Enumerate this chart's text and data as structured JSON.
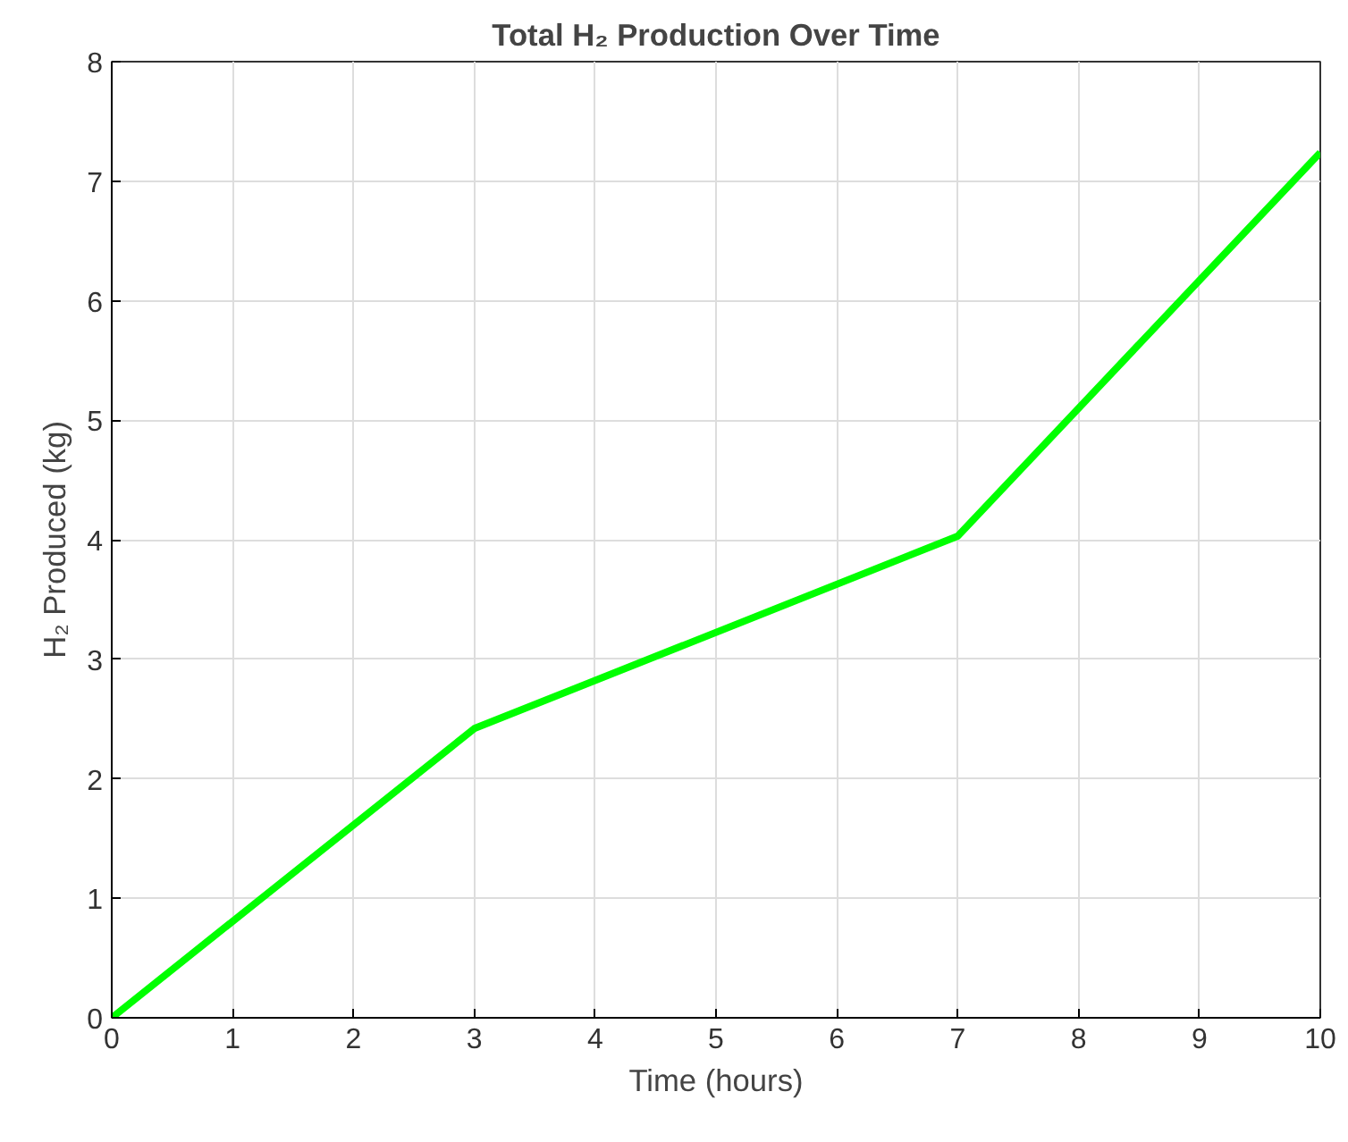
{
  "chart_data": {
    "type": "line",
    "title": "Total H₂ Production Over Time",
    "xlabel": "Time (hours)",
    "ylabel": "H₂ Produced (kg)",
    "x": [
      0,
      3,
      7,
      10
    ],
    "series": [
      {
        "color": "#00ff00",
        "values": [
          0,
          2.42,
          4.03,
          7.24
        ]
      }
    ],
    "xlim": [
      0,
      10
    ],
    "xticks": [
      0,
      1,
      2,
      3,
      4,
      5,
      6,
      7,
      8,
      9,
      10
    ],
    "ylim": [
      0,
      8
    ],
    "yticks": [
      0,
      1,
      2,
      3,
      4,
      5,
      6,
      7,
      8
    ],
    "grid": true,
    "marker": "none",
    "line_style": "solid"
  }
}
